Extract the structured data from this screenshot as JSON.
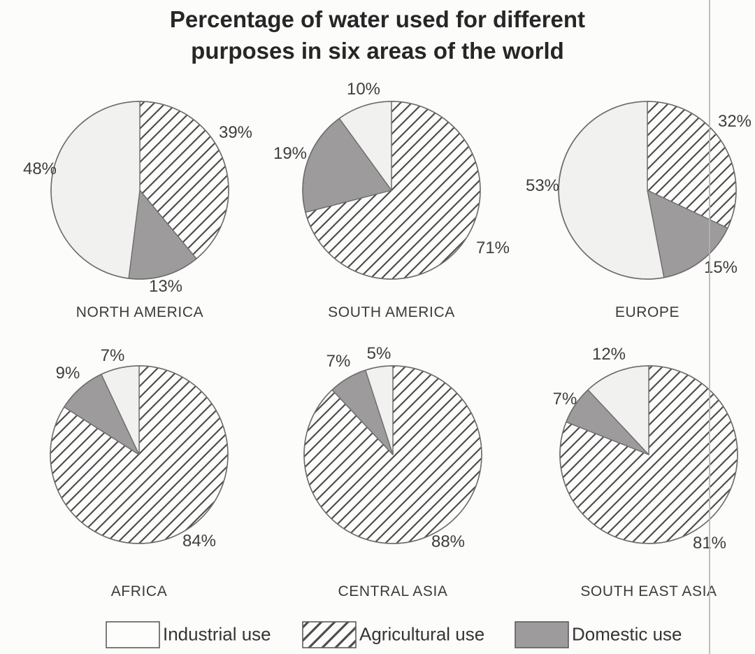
{
  "title": {
    "line1": "Percentage of water used for different",
    "line2": "purposes in six areas of the world"
  },
  "chart_data": {
    "type": "pie",
    "title": "Percentage of water used for different purposes in six areas of the world",
    "categories": [
      "Industrial use",
      "Agricultural use",
      "Domestic use"
    ],
    "unit": "%",
    "direction": "clockwise",
    "start_angle_deg": 0,
    "charts": [
      {
        "region": "NORTH AMERICA",
        "slices": [
          {
            "label": "Agricultural use",
            "value": 39,
            "display": "39%"
          },
          {
            "label": "Domestic use",
            "value": 13,
            "display": "13%"
          },
          {
            "label": "Industrial use",
            "value": 48,
            "display": "48%"
          }
        ]
      },
      {
        "region": "SOUTH AMERICA",
        "slices": [
          {
            "label": "Agricultural use",
            "value": 71,
            "display": "71%"
          },
          {
            "label": "Domestic use",
            "value": 19,
            "display": "19%"
          },
          {
            "label": "Industrial use",
            "value": 10,
            "display": "10%"
          }
        ]
      },
      {
        "region": "EUROPE",
        "slices": [
          {
            "label": "Agricultural use",
            "value": 32,
            "display": "32%"
          },
          {
            "label": "Domestic use",
            "value": 15,
            "display": "15%"
          },
          {
            "label": "Industrial use",
            "value": 53,
            "display": "53%"
          }
        ]
      },
      {
        "region": "AFRICA",
        "slices": [
          {
            "label": "Agricultural use",
            "value": 84,
            "display": "84%"
          },
          {
            "label": "Domestic use",
            "value": 9,
            "display": "9%"
          },
          {
            "label": "Industrial use",
            "value": 7,
            "display": "7%"
          }
        ]
      },
      {
        "region": "CENTRAL ASIA",
        "slices": [
          {
            "label": "Agricultural use",
            "value": 88,
            "display": "88%"
          },
          {
            "label": "Domestic use",
            "value": 7,
            "display": "7%"
          },
          {
            "label": "Industrial use",
            "value": 5,
            "display": "5%"
          }
        ]
      },
      {
        "region": "SOUTH EAST ASIA",
        "slices": [
          {
            "label": "Agricultural use",
            "value": 81,
            "display": "81%"
          },
          {
            "label": "Domestic use",
            "value": 7,
            "display": "7%"
          },
          {
            "label": "Industrial use",
            "value": 12,
            "display": "12%"
          }
        ]
      }
    ]
  },
  "legend": {
    "items": [
      {
        "label": "Industrial use",
        "style": "plain"
      },
      {
        "label": "Agricultural use",
        "style": "hatched"
      },
      {
        "label": "Domestic use",
        "style": "solid-gray"
      }
    ]
  },
  "colors": {
    "industrial_fill": "#f1f1ef",
    "hatch_background": "#fdfdfc",
    "hatch_line": "#4e4e4e",
    "domestic_fill": "#9e9b9c",
    "outline": "#6e6e6e",
    "text": "#3b3b3b",
    "page_edge_line": "#b3b3b3"
  }
}
